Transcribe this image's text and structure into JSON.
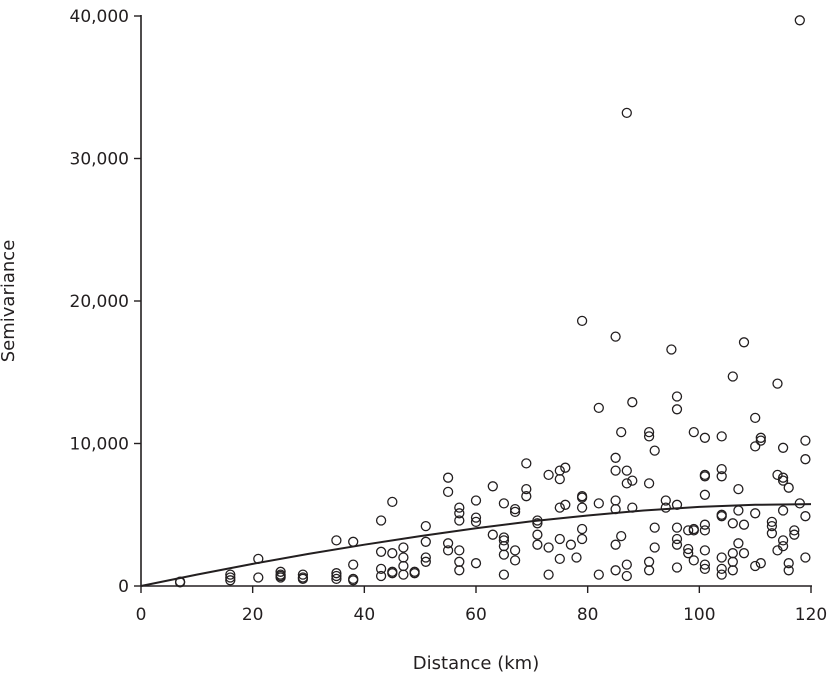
{
  "chart_data": {
    "type": "scatter",
    "xlabel": "Distance (km)",
    "ylabel": "Semivariance",
    "xlim": [
      0,
      120
    ],
    "ylim": [
      0,
      40000
    ],
    "x_ticks": [
      0,
      20,
      40,
      60,
      80,
      100,
      120
    ],
    "y_ticks": [
      0,
      10000,
      20000,
      30000,
      40000
    ],
    "x_tick_labels": [
      "0",
      "20",
      "40",
      "60",
      "80",
      "100",
      "120"
    ],
    "y_tick_labels": [
      "0",
      "10,000",
      "20,000",
      "30,000",
      "40,000"
    ],
    "grid": false,
    "legend": "none",
    "series": [
      {
        "kind": "points",
        "marker": "open-circle",
        "points": [
          [
            7,
            250
          ],
          [
            7,
            300
          ],
          [
            16,
            400
          ],
          [
            16,
            600
          ],
          [
            16,
            800
          ],
          [
            21,
            600
          ],
          [
            21,
            1900
          ],
          [
            25,
            600
          ],
          [
            25,
            700
          ],
          [
            25,
            800
          ],
          [
            25,
            1000
          ],
          [
            29,
            500
          ],
          [
            29,
            600
          ],
          [
            29,
            800
          ],
          [
            35,
            500
          ],
          [
            35,
            700
          ],
          [
            35,
            900
          ],
          [
            35,
            3200
          ],
          [
            38,
            400
          ],
          [
            38,
            500
          ],
          [
            38,
            1500
          ],
          [
            38,
            3100
          ],
          [
            43,
            700
          ],
          [
            43,
            1200
          ],
          [
            43,
            2400
          ],
          [
            43,
            4600
          ],
          [
            45,
            900
          ],
          [
            45,
            1000
          ],
          [
            45,
            2300
          ],
          [
            45,
            5900
          ],
          [
            47,
            800
          ],
          [
            47,
            1400
          ],
          [
            47,
            2000
          ],
          [
            47,
            2700
          ],
          [
            49,
            900
          ],
          [
            49,
            1000
          ],
          [
            51,
            1700
          ],
          [
            51,
            2000
          ],
          [
            51,
            3100
          ],
          [
            51,
            4200
          ],
          [
            55,
            2500
          ],
          [
            55,
            3000
          ],
          [
            55,
            6600
          ],
          [
            55,
            7600
          ],
          [
            57,
            1100
          ],
          [
            57,
            1700
          ],
          [
            57,
            2500
          ],
          [
            57,
            4600
          ],
          [
            57,
            5100
          ],
          [
            57,
            5500
          ],
          [
            60,
            1600
          ],
          [
            60,
            4500
          ],
          [
            60,
            4800
          ],
          [
            60,
            6000
          ],
          [
            63,
            3600
          ],
          [
            63,
            7000
          ],
          [
            65,
            800
          ],
          [
            65,
            2200
          ],
          [
            65,
            2800
          ],
          [
            65,
            3200
          ],
          [
            65,
            3400
          ],
          [
            65,
            5800
          ],
          [
            67,
            1800
          ],
          [
            67,
            2500
          ],
          [
            67,
            5200
          ],
          [
            67,
            5400
          ],
          [
            69,
            6300
          ],
          [
            69,
            6800
          ],
          [
            69,
            8600
          ],
          [
            71,
            2900
          ],
          [
            71,
            3600
          ],
          [
            71,
            4400
          ],
          [
            71,
            4600
          ],
          [
            73,
            800
          ],
          [
            73,
            2700
          ],
          [
            73,
            7800
          ],
          [
            75,
            1900
          ],
          [
            75,
            3300
          ],
          [
            75,
            5500
          ],
          [
            75,
            7500
          ],
          [
            75,
            8100
          ],
          [
            76,
            5700
          ],
          [
            76,
            8300
          ],
          [
            77,
            2900
          ],
          [
            78,
            2000
          ],
          [
            79,
            3300
          ],
          [
            79,
            4000
          ],
          [
            79,
            6200
          ],
          [
            79,
            6300
          ],
          [
            79,
            5500
          ],
          [
            79,
            18600
          ],
          [
            82,
            800
          ],
          [
            82,
            5800
          ],
          [
            82,
            12500
          ],
          [
            85,
            1100
          ],
          [
            85,
            2900
          ],
          [
            85,
            5400
          ],
          [
            85,
            6000
          ],
          [
            85,
            8100
          ],
          [
            85,
            9000
          ],
          [
            85,
            17500
          ],
          [
            86,
            3500
          ],
          [
            86,
            10800
          ],
          [
            87,
            700
          ],
          [
            87,
            1500
          ],
          [
            87,
            7200
          ],
          [
            87,
            8100
          ],
          [
            87,
            33200
          ],
          [
            88,
            5500
          ],
          [
            88,
            7400
          ],
          [
            88,
            12900
          ],
          [
            91,
            1100
          ],
          [
            91,
            1700
          ],
          [
            91,
            7200
          ],
          [
            91,
            10500
          ],
          [
            91,
            10800
          ],
          [
            92,
            2700
          ],
          [
            92,
            4100
          ],
          [
            92,
            9500
          ],
          [
            94,
            5500
          ],
          [
            94,
            6000
          ],
          [
            95,
            16600
          ],
          [
            96,
            1300
          ],
          [
            96,
            2900
          ],
          [
            96,
            3300
          ],
          [
            96,
            4100
          ],
          [
            96,
            5700
          ],
          [
            96,
            12400
          ],
          [
            96,
            13300
          ],
          [
            98,
            2300
          ],
          [
            98,
            2600
          ],
          [
            98,
            3900
          ],
          [
            99,
            1800
          ],
          [
            99,
            3900
          ],
          [
            99,
            4000
          ],
          [
            99,
            10800
          ],
          [
            101,
            1200
          ],
          [
            101,
            1500
          ],
          [
            101,
            2500
          ],
          [
            101,
            3900
          ],
          [
            101,
            4300
          ],
          [
            101,
            6400
          ],
          [
            101,
            7700
          ],
          [
            101,
            7800
          ],
          [
            101,
            10400
          ],
          [
            104,
            800
          ],
          [
            104,
            1200
          ],
          [
            104,
            2000
          ],
          [
            104,
            4900
          ],
          [
            104,
            5000
          ],
          [
            104,
            7700
          ],
          [
            104,
            8200
          ],
          [
            104,
            10500
          ],
          [
            106,
            1100
          ],
          [
            106,
            1700
          ],
          [
            106,
            2300
          ],
          [
            106,
            4400
          ],
          [
            106,
            14700
          ],
          [
            107,
            3000
          ],
          [
            107,
            5300
          ],
          [
            107,
            6800
          ],
          [
            108,
            2300
          ],
          [
            108,
            4300
          ],
          [
            108,
            17100
          ],
          [
            110,
            1400
          ],
          [
            110,
            5100
          ],
          [
            110,
            9800
          ],
          [
            110,
            11800
          ],
          [
            111,
            1600
          ],
          [
            111,
            10200
          ],
          [
            111,
            10400
          ],
          [
            113,
            3700
          ],
          [
            113,
            4200
          ],
          [
            113,
            4500
          ],
          [
            114,
            2500
          ],
          [
            114,
            7800
          ],
          [
            114,
            14200
          ],
          [
            115,
            2800
          ],
          [
            115,
            3200
          ],
          [
            115,
            5300
          ],
          [
            115,
            7400
          ],
          [
            115,
            7600
          ],
          [
            115,
            9700
          ],
          [
            116,
            1100
          ],
          [
            116,
            1600
          ],
          [
            116,
            6900
          ],
          [
            117,
            3600
          ],
          [
            117,
            3900
          ],
          [
            118,
            5800
          ],
          [
            118,
            39700
          ],
          [
            119,
            2000
          ],
          [
            119,
            4900
          ],
          [
            119,
            8900
          ],
          [
            119,
            10200
          ]
        ]
      },
      {
        "kind": "fitted-curve",
        "points": [
          [
            0,
            0
          ],
          [
            10,
            800
          ],
          [
            20,
            1550
          ],
          [
            30,
            2250
          ],
          [
            40,
            2900
          ],
          [
            50,
            3500
          ],
          [
            60,
            4050
          ],
          [
            70,
            4550
          ],
          [
            80,
            4950
          ],
          [
            90,
            5300
          ],
          [
            100,
            5550
          ],
          [
            110,
            5700
          ],
          [
            120,
            5750
          ]
        ]
      }
    ]
  }
}
